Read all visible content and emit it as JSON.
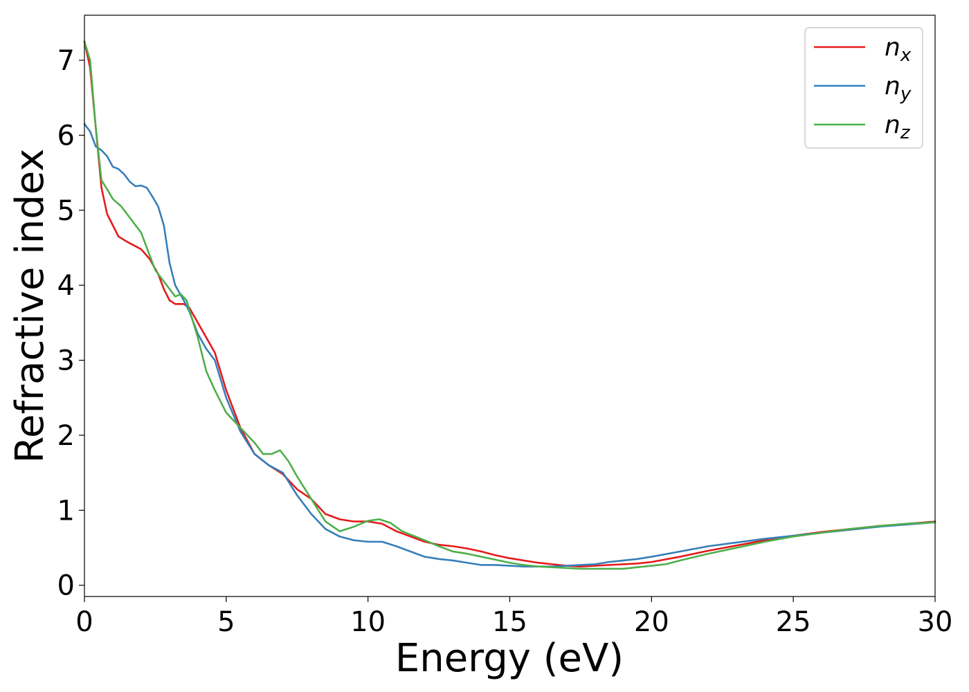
{
  "chart_data": {
    "type": "line",
    "xlabel": "Energy (eV)",
    "ylabel": "Refractive index",
    "xlim": [
      0,
      30
    ],
    "ylim": [
      -0.15,
      7.6
    ],
    "xticks": [
      0,
      5,
      10,
      15,
      20,
      25,
      30
    ],
    "yticks": [
      0,
      1,
      2,
      3,
      4,
      5,
      6,
      7
    ],
    "grid": false,
    "legend_position": "top-right",
    "series": [
      {
        "name": "n",
        "subscript": "x",
        "color": "#e41a1c",
        "x": [
          0,
          0.2,
          0.4,
          0.6,
          0.8,
          1.0,
          1.2,
          1.5,
          1.8,
          2.0,
          2.3,
          2.6,
          2.8,
          3.0,
          3.2,
          3.5,
          3.7,
          4.0,
          4.3,
          4.6,
          5.0,
          5.5,
          6.0,
          6.5,
          7.0,
          7.5,
          8.0,
          8.5,
          9.0,
          9.5,
          10.0,
          10.5,
          11.0,
          11.5,
          12.0,
          12.5,
          13.0,
          13.5,
          14.0,
          14.5,
          15.0,
          15.5,
          16.0,
          16.5,
          17.0,
          17.5,
          18.0,
          18.5,
          19.0,
          19.5,
          20.0,
          21.0,
          22.0,
          23.0,
          24.0,
          25.0,
          26.0,
          27.0,
          28.0,
          29.0,
          30.0
        ],
        "values": [
          7.25,
          6.9,
          6.1,
          5.3,
          4.95,
          4.8,
          4.65,
          4.58,
          4.52,
          4.48,
          4.35,
          4.15,
          3.95,
          3.8,
          3.75,
          3.75,
          3.7,
          3.5,
          3.3,
          3.1,
          2.6,
          2.1,
          1.75,
          1.6,
          1.48,
          1.28,
          1.15,
          0.95,
          0.88,
          0.85,
          0.85,
          0.82,
          0.72,
          0.65,
          0.58,
          0.54,
          0.52,
          0.49,
          0.45,
          0.4,
          0.36,
          0.33,
          0.3,
          0.28,
          0.26,
          0.25,
          0.26,
          0.27,
          0.28,
          0.29,
          0.31,
          0.38,
          0.46,
          0.53,
          0.6,
          0.66,
          0.71,
          0.75,
          0.79,
          0.82,
          0.85
        ]
      },
      {
        "name": "n",
        "subscript": "y",
        "color": "#377eb8",
        "x": [
          0,
          0.2,
          0.4,
          0.6,
          0.8,
          1.0,
          1.2,
          1.4,
          1.6,
          1.8,
          2.0,
          2.2,
          2.4,
          2.6,
          2.8,
          3.0,
          3.2,
          3.5,
          3.7,
          4.0,
          4.3,
          4.6,
          5.0,
          5.5,
          6.0,
          6.5,
          7.0,
          7.5,
          8.0,
          8.5,
          9.0,
          9.5,
          10.0,
          10.5,
          11.0,
          11.5,
          12.0,
          12.5,
          13.0,
          13.5,
          14.0,
          14.5,
          15.0,
          15.5,
          16.0,
          16.5,
          17.0,
          17.5,
          18.0,
          18.5,
          19.0,
          19.5,
          20.0,
          21.0,
          22.0,
          23.0,
          24.0,
          25.0,
          26.0,
          27.0,
          28.0,
          29.0,
          30.0
        ],
        "values": [
          6.15,
          6.05,
          5.85,
          5.8,
          5.72,
          5.58,
          5.55,
          5.48,
          5.38,
          5.32,
          5.33,
          5.3,
          5.18,
          5.05,
          4.8,
          4.3,
          4.0,
          3.8,
          3.65,
          3.35,
          3.15,
          3.0,
          2.5,
          2.05,
          1.75,
          1.6,
          1.5,
          1.2,
          0.95,
          0.75,
          0.65,
          0.6,
          0.58,
          0.58,
          0.52,
          0.45,
          0.38,
          0.35,
          0.33,
          0.3,
          0.27,
          0.27,
          0.26,
          0.25,
          0.25,
          0.25,
          0.26,
          0.27,
          0.28,
          0.31,
          0.33,
          0.35,
          0.38,
          0.45,
          0.52,
          0.57,
          0.62,
          0.66,
          0.7,
          0.74,
          0.78,
          0.81,
          0.84
        ]
      },
      {
        "name": "n",
        "subscript": "z",
        "color": "#4daf4a",
        "x": [
          0,
          0.2,
          0.4,
          0.6,
          0.8,
          1.0,
          1.3,
          1.6,
          2.0,
          2.2,
          2.5,
          2.8,
          3.0,
          3.2,
          3.4,
          3.6,
          3.8,
          4.0,
          4.3,
          4.6,
          5.0,
          5.5,
          6.0,
          6.3,
          6.6,
          6.9,
          7.2,
          7.5,
          8.0,
          8.5,
          9.0,
          9.5,
          10.0,
          10.4,
          10.8,
          11.2,
          11.6,
          12.0,
          12.5,
          13.0,
          13.5,
          14.0,
          14.5,
          15.0,
          15.5,
          16.0,
          16.5,
          17.0,
          17.5,
          18.0,
          18.5,
          19.0,
          19.5,
          20.0,
          20.5,
          21.0,
          22.0,
          23.0,
          24.0,
          25.0,
          26.0,
          27.0,
          28.0,
          29.0,
          30.0
        ],
        "values": [
          7.25,
          7.0,
          6.1,
          5.4,
          5.28,
          5.15,
          5.05,
          4.9,
          4.7,
          4.5,
          4.2,
          4.05,
          3.95,
          3.85,
          3.88,
          3.8,
          3.55,
          3.3,
          2.85,
          2.6,
          2.3,
          2.1,
          1.9,
          1.75,
          1.75,
          1.8,
          1.65,
          1.45,
          1.15,
          0.85,
          0.72,
          0.78,
          0.86,
          0.88,
          0.83,
          0.72,
          0.66,
          0.6,
          0.52,
          0.45,
          0.42,
          0.38,
          0.34,
          0.3,
          0.27,
          0.25,
          0.24,
          0.23,
          0.22,
          0.22,
          0.22,
          0.22,
          0.24,
          0.26,
          0.28,
          0.33,
          0.42,
          0.5,
          0.58,
          0.65,
          0.7,
          0.75,
          0.79,
          0.82,
          0.84
        ]
      }
    ]
  }
}
